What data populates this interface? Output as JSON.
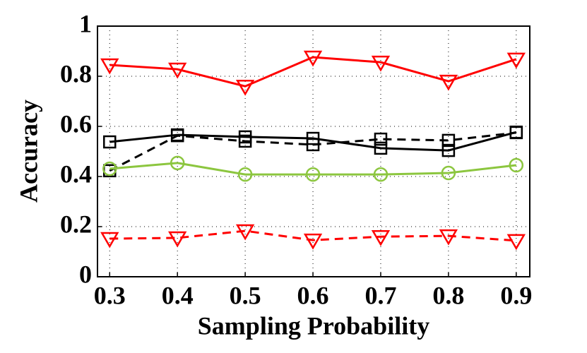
{
  "chart_data": {
    "type": "line",
    "xlabel": "Sampling Probability",
    "ylabel": "Accuracy",
    "x": [
      0.3,
      0.4,
      0.5,
      0.6,
      0.7,
      0.8,
      0.9
    ],
    "series": [
      {
        "color": "#ff0000",
        "marker": "triangle-down",
        "dashed": false,
        "values": [
          0.845,
          0.828,
          0.76,
          0.876,
          0.856,
          0.78,
          0.868
        ]
      },
      {
        "color": "#000000",
        "marker": "square",
        "dashed": false,
        "values": [
          0.538,
          0.566,
          0.558,
          0.552,
          0.513,
          0.504,
          0.577
        ]
      },
      {
        "color": "#000000",
        "marker": "square",
        "dashed": true,
        "values": [
          0.423,
          0.563,
          0.541,
          0.527,
          0.549,
          0.544,
          0.575
        ]
      },
      {
        "color": "#8cc63f",
        "marker": "circle",
        "dashed": false,
        "values": [
          0.431,
          0.454,
          0.408,
          0.408,
          0.408,
          0.414,
          0.445
        ]
      },
      {
        "color": "#ff0000",
        "marker": "triangle-down",
        "dashed": true,
        "values": [
          0.152,
          0.155,
          0.183,
          0.146,
          0.16,
          0.163,
          0.144
        ]
      }
    ],
    "xlim": [
      0.282,
      0.92
    ],
    "ylim": [
      0,
      1
    ],
    "xticks": [
      0.3,
      0.4,
      0.5,
      0.6,
      0.7,
      0.8,
      0.9
    ],
    "yticks": [
      0,
      0.2,
      0.4,
      0.6,
      0.8,
      1
    ],
    "grid": true
  }
}
